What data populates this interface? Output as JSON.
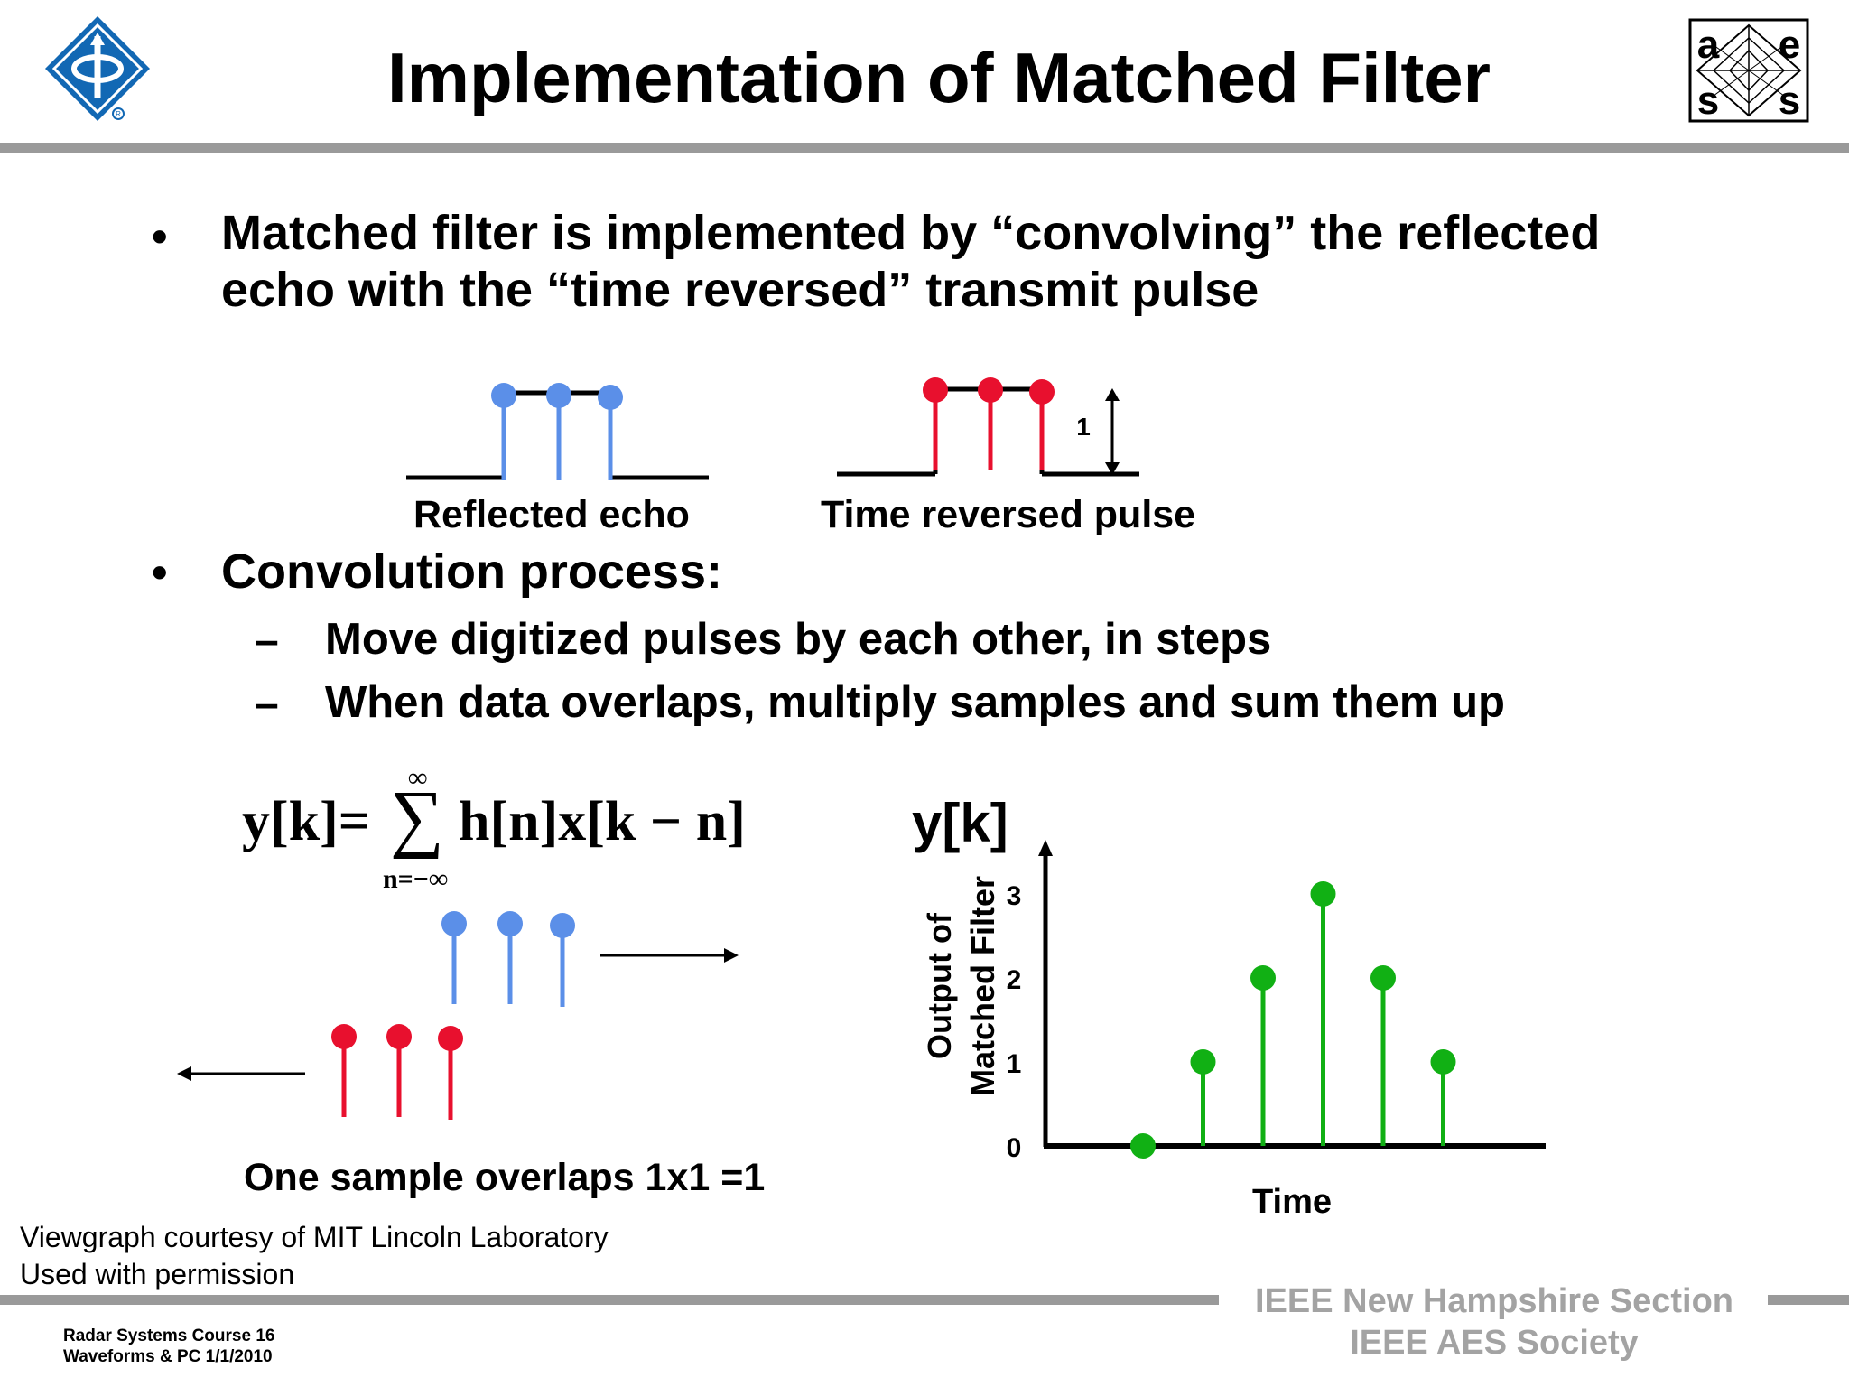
{
  "title": "Implementation of Matched Filter",
  "bullets": [
    {
      "lines": [
        "Matched filter is implemented by “convolving” the reflected",
        "echo with the “time reversed” transmit pulse"
      ]
    },
    {
      "lines": [
        "Convolution process:"
      ]
    }
  ],
  "sub_bullets": [
    "Move digitized pulses by  each other, in steps",
    "When data overlaps, multiply samples and sum them up"
  ],
  "dash_char": "–",
  "bullet_char": "•",
  "pulse_labels": {
    "reflected_echo": "Reflected echo",
    "time_reversed": "Time reversed pulse",
    "amplitude": "1"
  },
  "formula": {
    "lhs": "y[k]=",
    "sigma": "∑",
    "upper": "∞",
    "lower": "n=−∞",
    "rhs": "h[n]x[k − n]"
  },
  "overlap_caption": "One sample overlaps  1x1 =1",
  "colors": {
    "blue": "#5b8fe8",
    "red": "#e8102e",
    "green": "#11b014",
    "rule": "#9a9a9a",
    "ieee_gray": "#a3a3a3",
    "ieee_logo_blue": "#1268b4"
  },
  "chart_data": {
    "type": "stem",
    "title": "y[k]",
    "xlabel": "Time",
    "ylabel_lines": [
      "Output of",
      "Matched Filter"
    ],
    "yticks": [
      "0",
      "1",
      "2",
      "3"
    ],
    "ylim": [
      0,
      3
    ],
    "x": [
      1,
      2,
      3,
      4,
      5,
      6
    ],
    "values": [
      0,
      1,
      2,
      3,
      2,
      1
    ]
  },
  "credits": [
    "Viewgraph courtesy of MIT Lincoln Laboratory",
    "Used with permission"
  ],
  "footer": {
    "course_line": "Radar Systems Course   16",
    "date_line": "Waveforms & PC  1/1/2010",
    "section_line1": "IEEE New Hampshire Section",
    "section_line2": "IEEE AES Society"
  },
  "logos": {
    "left": "ieee-logo",
    "right_letters": [
      "a",
      "e",
      "s",
      "s"
    ]
  }
}
